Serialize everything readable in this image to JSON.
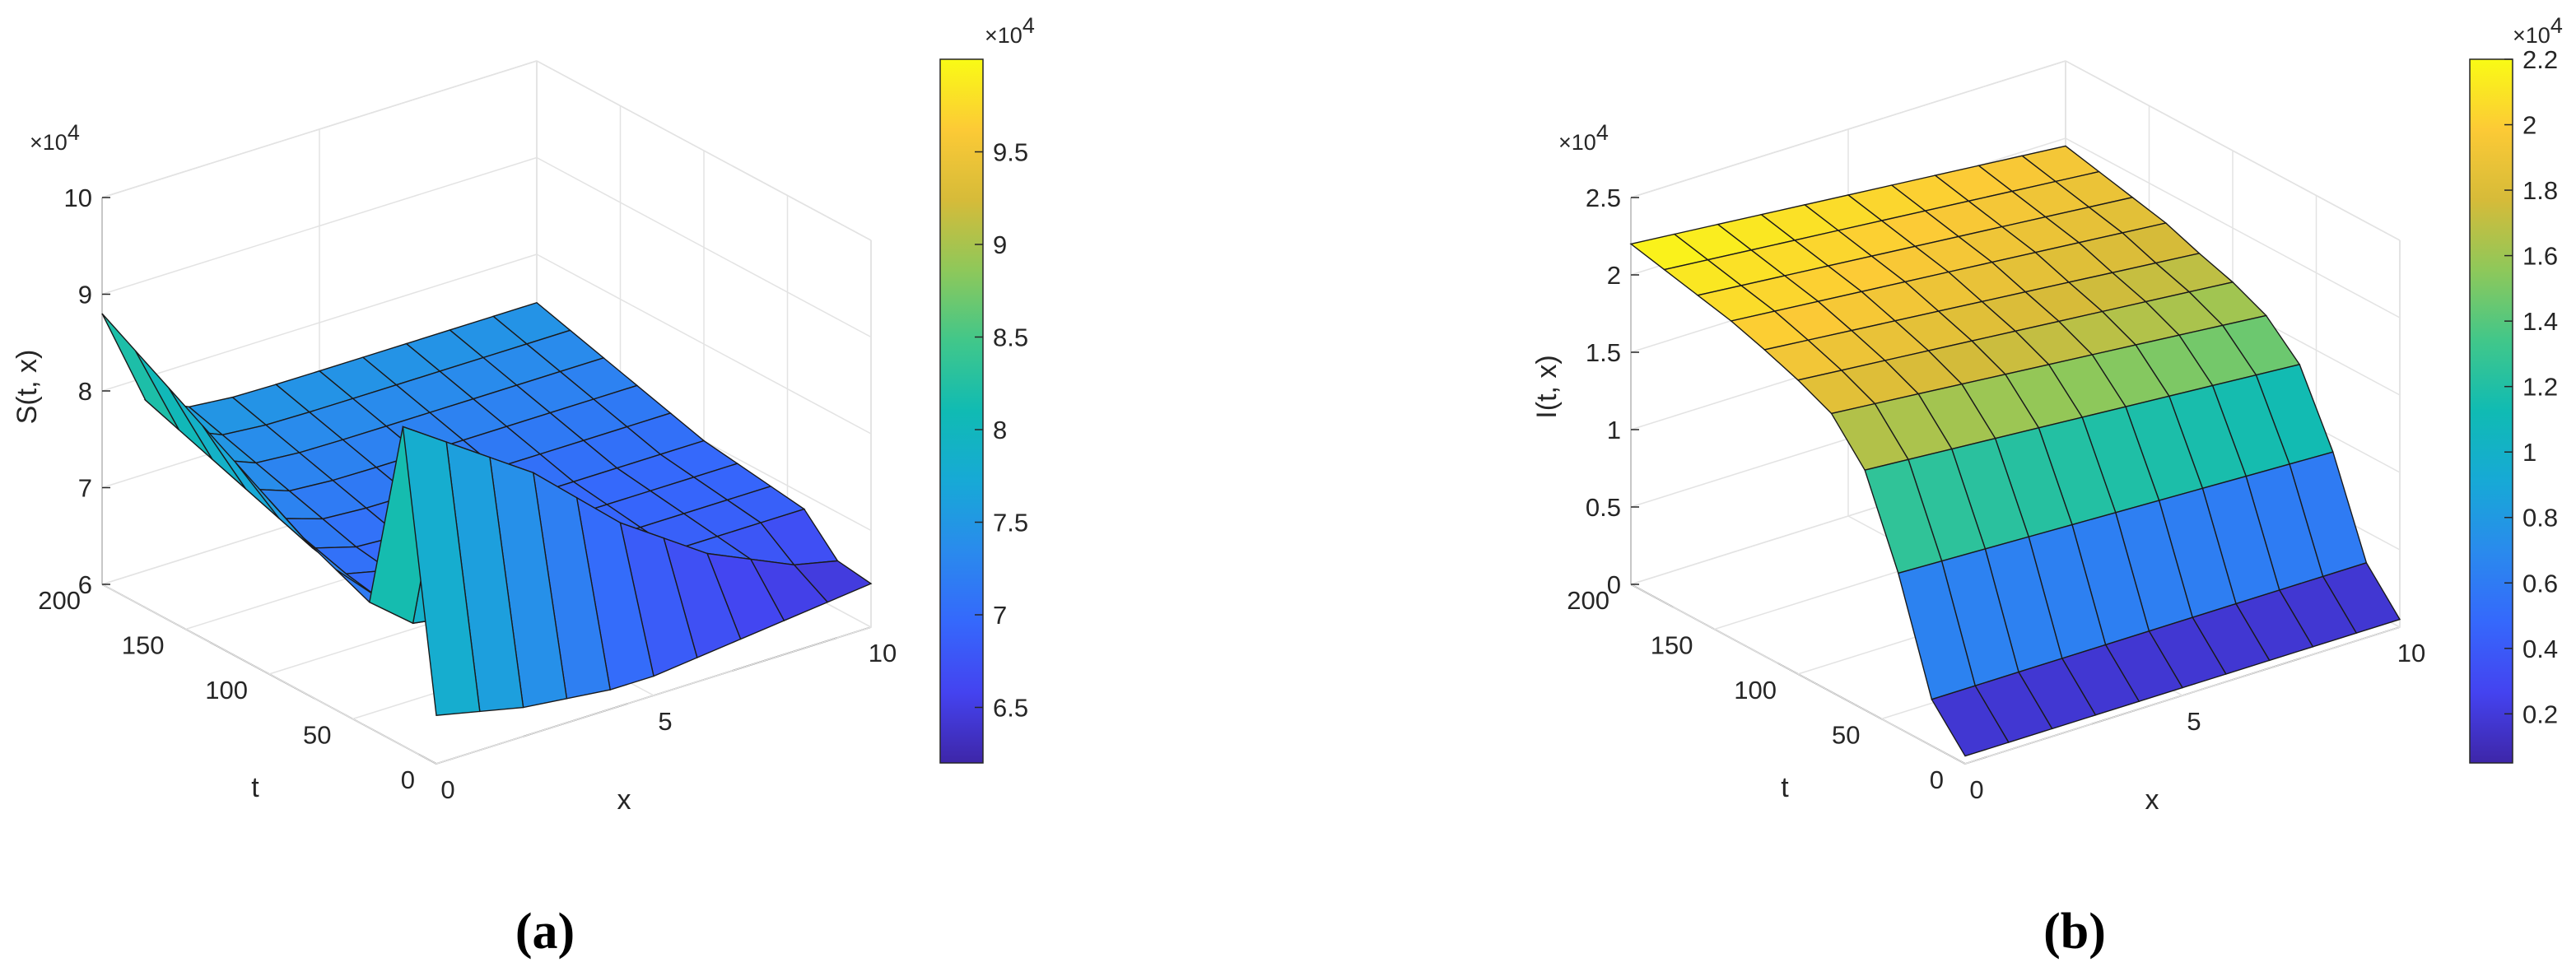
{
  "chart_data": [
    {
      "type": "surface3d",
      "caption": "(a)",
      "zlabel": "S(t, x)",
      "xlabel": "x",
      "tlabel": "t",
      "z_multiplier": "×10",
      "z_exponent": "4",
      "z_ticks": [
        "6",
        "7",
        "8",
        "9",
        "10"
      ],
      "z_tick_values": [
        6,
        7,
        8,
        9,
        10
      ],
      "zlim": [
        6,
        10
      ],
      "t_ticks": [
        "0",
        "50",
        "100",
        "150",
        "200"
      ],
      "t_tick_values": [
        0,
        50,
        100,
        150,
        200
      ],
      "tlim": [
        0,
        200
      ],
      "x_ticks": [
        "0",
        "5",
        "10"
      ],
      "x_tick_values": [
        0,
        5,
        10
      ],
      "xlim": [
        0,
        10
      ],
      "grid": true,
      "colorbar": {
        "multiplier": "×10",
        "exponent": "4",
        "ticks": [
          "6.5",
          "7",
          "7.5",
          "8",
          "8.5",
          "9",
          "9.5"
        ],
        "tick_values": [
          6.5,
          7,
          7.5,
          8,
          8.5,
          9,
          9.5
        ],
        "range": [
          6.2,
          10.0
        ]
      },
      "surface": {
        "rows_axis": "t",
        "cols_axis": "x",
        "x_values": [
          0,
          1,
          2,
          3,
          4,
          5,
          6,
          7,
          8,
          9,
          10
        ],
        "t_values": [
          200,
          180,
          160,
          140,
          120,
          100,
          80,
          60,
          40,
          20,
          0
        ],
        "z_boundary_x0": [
          8.8,
          8.6,
          8.4,
          8.2,
          8.0,
          7.8,
          7.6,
          7.45,
          7.3,
          7.2,
          7.1
        ],
        "z_interior": [
          7.5,
          7.4,
          7.3,
          7.2,
          7.1,
          7.0,
          6.95,
          6.9,
          6.85,
          6.8,
          6.75
        ],
        "z_near_t0": [
          9.3,
          9.0,
          8.7,
          8.4,
          8.0,
          7.6,
          7.3,
          7.0,
          6.8,
          6.6,
          6.5
        ],
        "z_at_t0": [
          6.5,
          6.4,
          6.3,
          6.25,
          6.2,
          6.2,
          6.25,
          6.3,
          6.35,
          6.4,
          6.45
        ]
      }
    },
    {
      "type": "surface3d",
      "caption": "(b)",
      "zlabel": "I(t, x)",
      "xlabel": "x",
      "tlabel": "t",
      "z_multiplier": "×10",
      "z_exponent": "4",
      "z_ticks": [
        "0",
        "0.5",
        "1",
        "1.5",
        "2",
        "2.5"
      ],
      "z_tick_values": [
        0,
        0.5,
        1,
        1.5,
        2,
        2.5
      ],
      "zlim": [
        0,
        2.5
      ],
      "t_ticks": [
        "0",
        "50",
        "100",
        "150",
        "200"
      ],
      "t_tick_values": [
        0,
        50,
        100,
        150,
        200
      ],
      "tlim": [
        0,
        200
      ],
      "x_ticks": [
        "0",
        "5",
        "10"
      ],
      "x_tick_values": [
        0,
        5,
        10
      ],
      "xlim": [
        0,
        10
      ],
      "grid": true,
      "colorbar": {
        "multiplier": "×10",
        "exponent": "4",
        "ticks": [
          "0.2",
          "0.4",
          "0.6",
          "0.8",
          "1",
          "1.2",
          "1.4",
          "1.6",
          "1.8",
          "2",
          "2.2"
        ],
        "tick_values": [
          0.2,
          0.4,
          0.6,
          0.8,
          1.0,
          1.2,
          1.4,
          1.6,
          1.8,
          2.0,
          2.2
        ],
        "range": [
          0.05,
          2.2
        ]
      },
      "surface": {
        "rows_axis": "t",
        "cols_axis": "x",
        "x_values": [
          0,
          1,
          2,
          3,
          4,
          5,
          6,
          7,
          8,
          9,
          10
        ],
        "t_values": [
          200,
          180,
          160,
          140,
          120,
          100,
          80,
          60,
          40,
          20,
          0
        ],
        "z_by_t_at_x0": [
          2.2,
          2.15,
          2.1,
          2.05,
          1.98,
          1.9,
          1.8,
          1.55,
          1.0,
          0.3,
          0.05
        ],
        "z_by_t_at_x10": [
          1.95,
          1.9,
          1.85,
          1.8,
          1.72,
          1.65,
          1.55,
          1.35,
          0.9,
          0.3,
          0.05
        ]
      }
    }
  ]
}
